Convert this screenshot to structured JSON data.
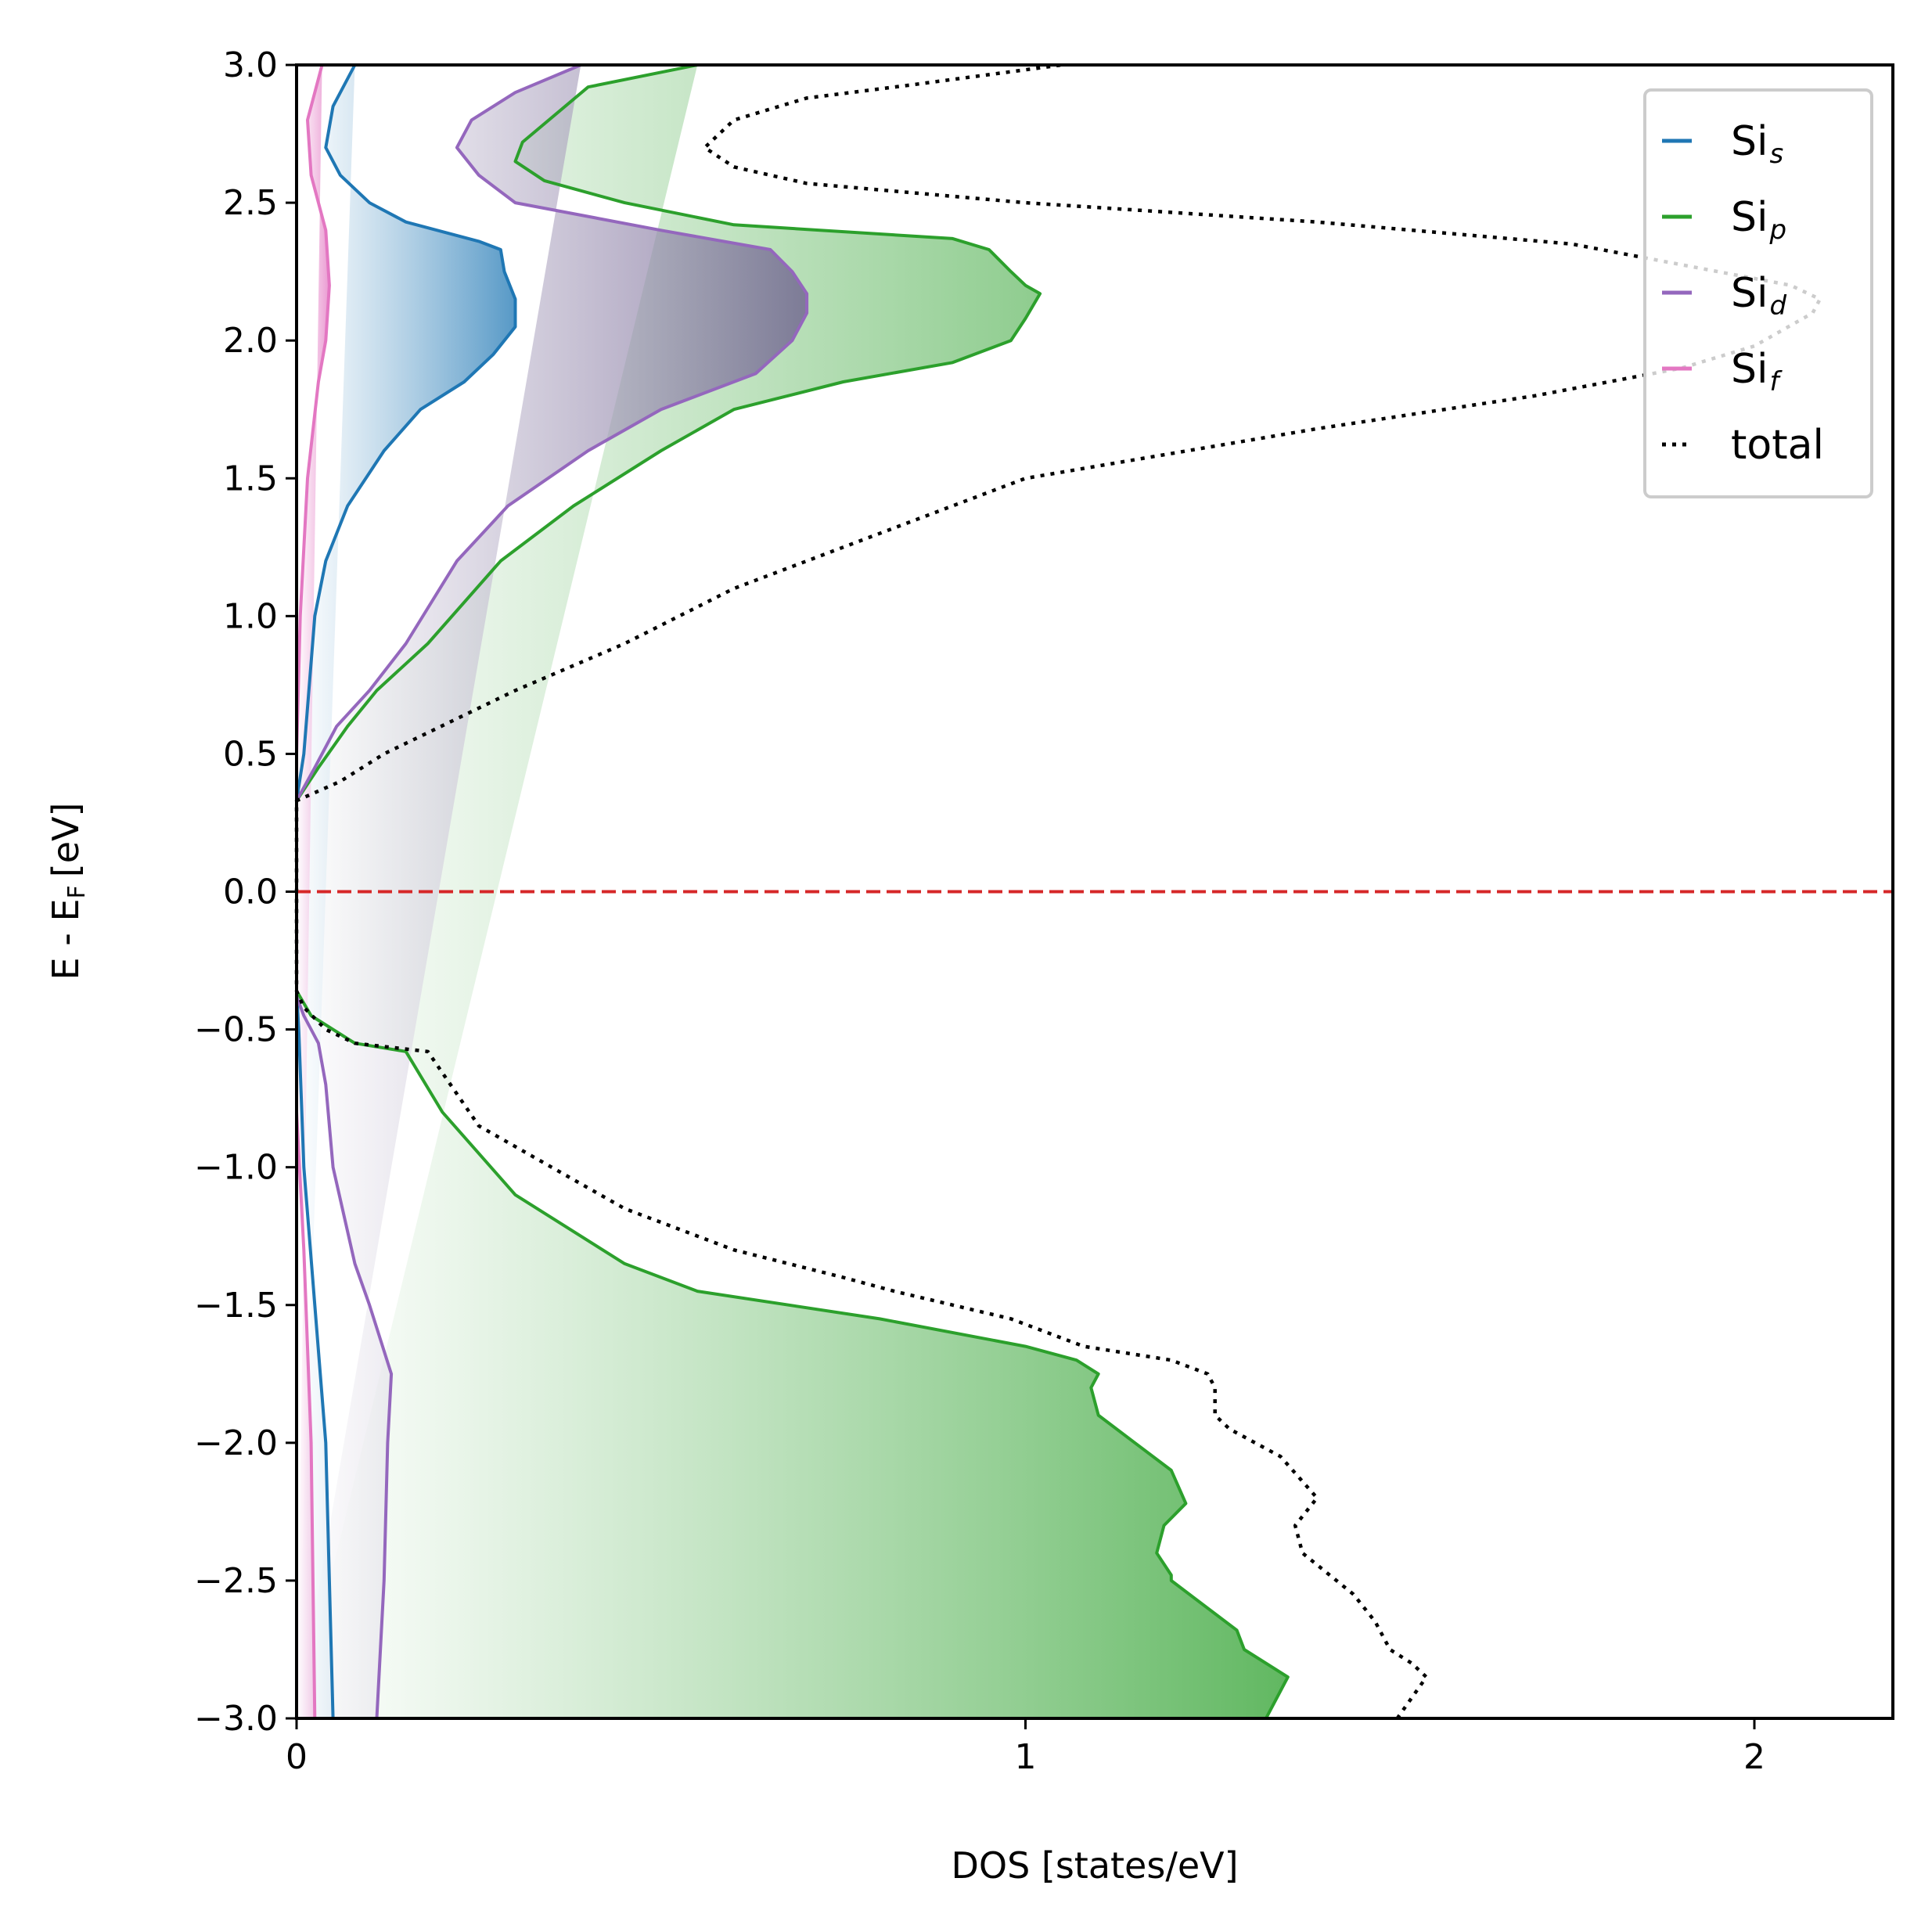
{
  "chart_data": {
    "type": "area",
    "orientation": "horizontal",
    "xlabel": "DOS [states/eV]",
    "ylabel": "E - E",
    "ylabel_subscript": "F",
    "ylabel_unit": "[eV]",
    "xlim": [
      0,
      2.19
    ],
    "ylim": [
      -3.0,
      3.0
    ],
    "xticks": [
      0,
      1,
      2
    ],
    "xtick_labels": [
      "0",
      "1",
      "2"
    ],
    "yticks": [
      3.0,
      2.5,
      2.0,
      1.5,
      1.0,
      0.5,
      0.0,
      -0.5,
      -1.0,
      -1.5,
      -2.0,
      -2.5,
      -3.0
    ],
    "ytick_labels": [
      "3.0",
      "2.5",
      "2.0",
      "1.5",
      "1.0",
      "0.5",
      "0.0",
      "−0.5",
      "−1.0",
      "−1.5",
      "−2.0",
      "−2.5",
      "−3.0"
    ],
    "grid": false,
    "legend_position": "top-right",
    "fermi_level": {
      "energy": 0.0,
      "color": "#d62728",
      "style": "dashed"
    },
    "series": [
      {
        "name": "Si",
        "sub": "s",
        "color": "#1f77b4",
        "filled": true,
        "fill_gradient": [
          "#ffffff",
          "#1f77b4"
        ],
        "points": [
          [
            0,
            -3.0
          ],
          [
            0.05,
            -3.0
          ],
          [
            0.045,
            -2.5
          ],
          [
            0.04,
            -2.0
          ],
          [
            0.025,
            -1.5
          ],
          [
            0.01,
            -1.0
          ],
          [
            0.003,
            -0.5
          ],
          [
            0.0,
            -0.36
          ],
          [
            0.0,
            0.33
          ],
          [
            0.01,
            0.5
          ],
          [
            0.025,
            1.0
          ],
          [
            0.04,
            1.2
          ],
          [
            0.07,
            1.4
          ],
          [
            0.12,
            1.6
          ],
          [
            0.17,
            1.75
          ],
          [
            0.23,
            1.85
          ],
          [
            0.27,
            1.95
          ],
          [
            0.3,
            2.05
          ],
          [
            0.3,
            2.15
          ],
          [
            0.285,
            2.25
          ],
          [
            0.28,
            2.33
          ],
          [
            0.25,
            2.36
          ],
          [
            0.15,
            2.43
          ],
          [
            0.1,
            2.5
          ],
          [
            0.06,
            2.6
          ],
          [
            0.04,
            2.7
          ],
          [
            0.05,
            2.85
          ],
          [
            0.08,
            3.0
          ]
        ]
      },
      {
        "name": "Si",
        "sub": "p",
        "color": "#2ca02c",
        "filled": true,
        "fill_gradient": [
          "#ffffff",
          "#2ca02c"
        ],
        "points": [
          [
            0,
            -3.0
          ],
          [
            1.33,
            -3.0
          ],
          [
            1.36,
            -2.85
          ],
          [
            1.33,
            -2.8
          ],
          [
            1.3,
            -2.75
          ],
          [
            1.29,
            -2.68
          ],
          [
            1.2,
            -2.5
          ],
          [
            1.2,
            -2.48
          ],
          [
            1.18,
            -2.4
          ],
          [
            1.19,
            -2.3
          ],
          [
            1.22,
            -2.22
          ],
          [
            1.2,
            -2.1
          ],
          [
            1.15,
            -2.0
          ],
          [
            1.1,
            -1.9
          ],
          [
            1.09,
            -1.8
          ],
          [
            1.1,
            -1.75
          ],
          [
            1.07,
            -1.7
          ],
          [
            1.0,
            -1.65
          ],
          [
            0.8,
            -1.55
          ],
          [
            0.55,
            -1.45
          ],
          [
            0.45,
            -1.35
          ],
          [
            0.3,
            -1.1
          ],
          [
            0.2,
            -0.8
          ],
          [
            0.15,
            -0.58
          ],
          [
            0.08,
            -0.55
          ],
          [
            0.02,
            -0.45
          ],
          [
            0.0,
            -0.36
          ],
          [
            0.0,
            0.33
          ],
          [
            0.03,
            0.45
          ],
          [
            0.07,
            0.6
          ],
          [
            0.11,
            0.73
          ],
          [
            0.18,
            0.9
          ],
          [
            0.28,
            1.2
          ],
          [
            0.38,
            1.4
          ],
          [
            0.5,
            1.6
          ],
          [
            0.6,
            1.75
          ],
          [
            0.75,
            1.85
          ],
          [
            0.9,
            1.92
          ],
          [
            0.98,
            2.0
          ],
          [
            1.0,
            2.08
          ],
          [
            1.02,
            2.17
          ],
          [
            1.0,
            2.2
          ],
          [
            0.98,
            2.25
          ],
          [
            0.95,
            2.33
          ],
          [
            0.9,
            2.37
          ],
          [
            0.6,
            2.42
          ],
          [
            0.45,
            2.5
          ],
          [
            0.34,
            2.58
          ],
          [
            0.3,
            2.65
          ],
          [
            0.31,
            2.72
          ],
          [
            0.4,
            2.92
          ],
          [
            0.55,
            3.0
          ]
        ]
      },
      {
        "name": "Si",
        "sub": "d",
        "color": "#9467bd",
        "filled": true,
        "fill_gradient": [
          "#ffffff",
          "#6a5a8c"
        ],
        "points": [
          [
            0,
            -3.0
          ],
          [
            0.11,
            -3.0
          ],
          [
            0.12,
            -2.5
          ],
          [
            0.125,
            -2.0
          ],
          [
            0.13,
            -1.75
          ],
          [
            0.1,
            -1.5
          ],
          [
            0.08,
            -1.35
          ],
          [
            0.05,
            -1.0
          ],
          [
            0.04,
            -0.7
          ],
          [
            0.03,
            -0.55
          ],
          [
            0.01,
            -0.45
          ],
          [
            0.0,
            -0.38
          ],
          [
            0.0,
            0.33
          ],
          [
            0.025,
            0.45
          ],
          [
            0.055,
            0.6
          ],
          [
            0.1,
            0.73
          ],
          [
            0.15,
            0.9
          ],
          [
            0.22,
            1.2
          ],
          [
            0.29,
            1.4
          ],
          [
            0.4,
            1.6
          ],
          [
            0.5,
            1.75
          ],
          [
            0.63,
            1.88
          ],
          [
            0.68,
            2.0
          ],
          [
            0.7,
            2.1
          ],
          [
            0.7,
            2.17
          ],
          [
            0.68,
            2.25
          ],
          [
            0.65,
            2.33
          ],
          [
            0.5,
            2.4
          ],
          [
            0.3,
            2.5
          ],
          [
            0.25,
            2.6
          ],
          [
            0.22,
            2.7
          ],
          [
            0.24,
            2.8
          ],
          [
            0.3,
            2.9
          ],
          [
            0.39,
            3.0
          ]
        ]
      },
      {
        "name": "Si",
        "sub": "f",
        "color": "#e377c2",
        "filled": true,
        "fill_gradient": [
          "#ffffff",
          "#e377c2"
        ],
        "points": [
          [
            0,
            -3.0
          ],
          [
            0.025,
            -3.0
          ],
          [
            0.02,
            -2.0
          ],
          [
            0.01,
            -1.3
          ],
          [
            0.0,
            -0.8
          ],
          [
            0.0,
            0.5
          ],
          [
            0.005,
            1.0
          ],
          [
            0.015,
            1.5
          ],
          [
            0.03,
            1.85
          ],
          [
            0.04,
            2.0
          ],
          [
            0.045,
            2.2
          ],
          [
            0.04,
            2.4
          ],
          [
            0.02,
            2.6
          ],
          [
            0.015,
            2.8
          ],
          [
            0.035,
            3.0
          ]
        ]
      },
      {
        "name": "total",
        "sub": "",
        "color": "#000000",
        "filled": false,
        "dotted": true,
        "points": [
          [
            1.51,
            -3.0
          ],
          [
            1.55,
            -2.85
          ],
          [
            1.53,
            -2.8
          ],
          [
            1.5,
            -2.75
          ],
          [
            1.48,
            -2.65
          ],
          [
            1.45,
            -2.55
          ],
          [
            1.38,
            -2.4
          ],
          [
            1.37,
            -2.3
          ],
          [
            1.4,
            -2.2
          ],
          [
            1.35,
            -2.05
          ],
          [
            1.28,
            -1.95
          ],
          [
            1.26,
            -1.9
          ],
          [
            1.26,
            -1.8
          ],
          [
            1.25,
            -1.75
          ],
          [
            1.2,
            -1.7
          ],
          [
            1.08,
            -1.65
          ],
          [
            0.98,
            -1.55
          ],
          [
            0.82,
            -1.45
          ],
          [
            0.75,
            -1.4
          ],
          [
            0.6,
            -1.3
          ],
          [
            0.45,
            -1.15
          ],
          [
            0.35,
            -1.0
          ],
          [
            0.25,
            -0.85
          ],
          [
            0.18,
            -0.58
          ],
          [
            0.08,
            -0.55
          ],
          [
            0.04,
            -0.5
          ],
          [
            0.01,
            -0.42
          ],
          [
            0.0,
            -0.36
          ],
          [
            0.0,
            0.33
          ],
          [
            0.06,
            0.4
          ],
          [
            0.12,
            0.5
          ],
          [
            0.3,
            0.73
          ],
          [
            0.45,
            0.9
          ],
          [
            0.6,
            1.1
          ],
          [
            0.8,
            1.3
          ],
          [
            1.0,
            1.5
          ],
          [
            1.4,
            1.68
          ],
          [
            1.7,
            1.8
          ],
          [
            1.9,
            1.9
          ],
          [
            2.0,
            1.98
          ],
          [
            2.08,
            2.1
          ],
          [
            2.09,
            2.15
          ],
          [
            2.05,
            2.2
          ],
          [
            1.95,
            2.25
          ],
          [
            1.75,
            2.35
          ],
          [
            1.4,
            2.43
          ],
          [
            1.0,
            2.5
          ],
          [
            0.7,
            2.57
          ],
          [
            0.6,
            2.63
          ],
          [
            0.56,
            2.7
          ],
          [
            0.6,
            2.8
          ],
          [
            0.7,
            2.88
          ],
          [
            0.85,
            2.93
          ],
          [
            1.05,
            3.0
          ]
        ]
      }
    ]
  }
}
